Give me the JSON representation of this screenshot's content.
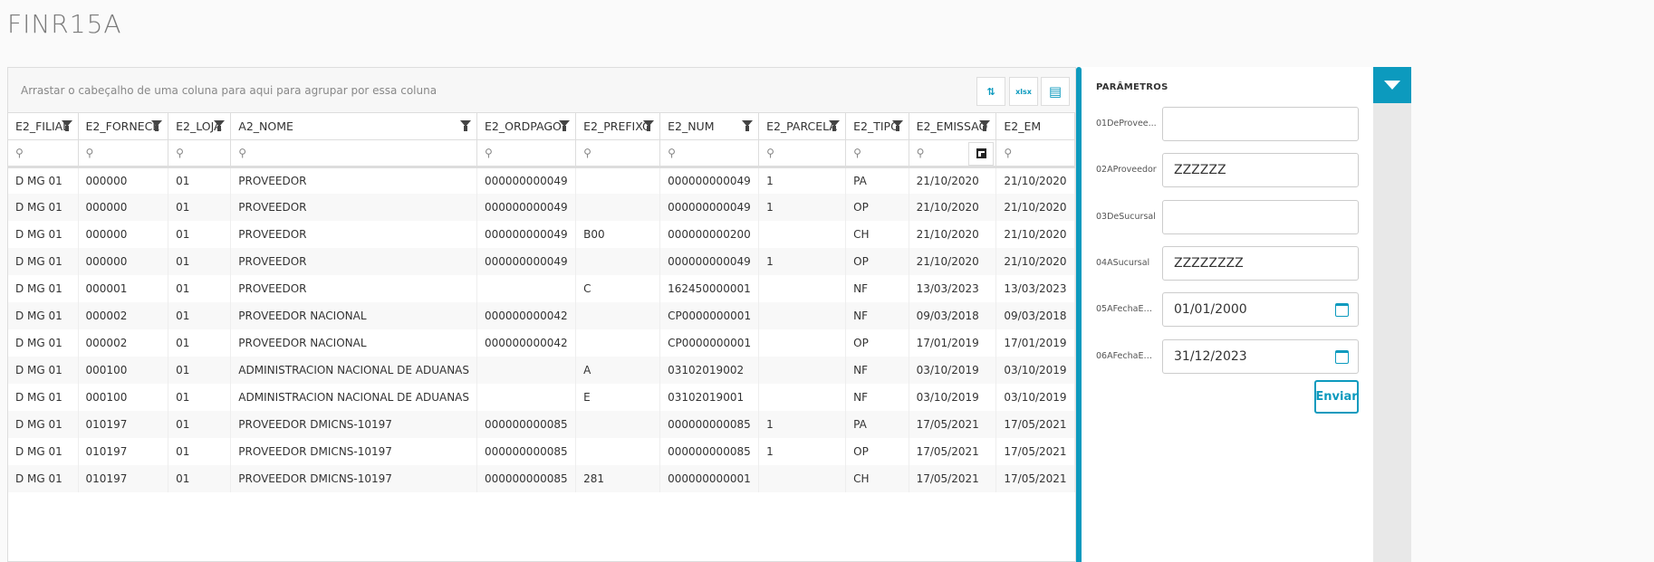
{
  "title": "FINR15A",
  "grid": {
    "group_hint": "Arrastar o cabeçalho de uma coluna para aqui para agrupar por essa coluna",
    "toolbar": [
      {
        "icon": "collapse-rows-icon",
        "glyph": "⇅"
      },
      {
        "icon": "export-xlsx-icon",
        "glyph": "xlsx"
      },
      {
        "icon": "column-chooser-icon",
        "glyph": "▤"
      }
    ],
    "columns": [
      "E2_FILIAL",
      "E2_FORNECE",
      "E2_LOJA",
      "A2_NOME",
      "E2_ORDPAGO",
      "E2_PREFIXO",
      "E2_NUM",
      "E2_PARCELA",
      "E2_TIPO",
      "E2_EMISSAO",
      "E2_EM"
    ],
    "rows": [
      [
        "D MG 01",
        "000000",
        "01",
        "PROVEEDOR",
        "000000000049",
        "",
        "000000000049",
        "1",
        "PA",
        "21/10/2020",
        "21/10/2020"
      ],
      [
        "D MG 01",
        "000000",
        "01",
        "PROVEEDOR",
        "000000000049",
        "",
        "000000000049",
        "1",
        "OP",
        "21/10/2020",
        "21/10/2020"
      ],
      [
        "D MG 01",
        "000000",
        "01",
        "PROVEEDOR",
        "000000000049",
        "B00",
        "000000000200",
        "",
        "CH",
        "21/10/2020",
        "21/10/2020"
      ],
      [
        "D MG 01",
        "000000",
        "01",
        "PROVEEDOR",
        "000000000049",
        "",
        "000000000049",
        "1",
        "OP",
        "21/10/2020",
        "21/10/2020"
      ],
      [
        "D MG 01",
        "000001",
        "01",
        "PROVEEDOR",
        "",
        "C",
        "162450000001",
        "",
        "NF",
        "13/03/2023",
        "13/03/2023"
      ],
      [
        "D MG 01",
        "000002",
        "01",
        "PROVEEDOR NACIONAL",
        "000000000042",
        "",
        "CP0000000001",
        "",
        "NF",
        "09/03/2018",
        "09/03/2018"
      ],
      [
        "D MG 01",
        "000002",
        "01",
        "PROVEEDOR NACIONAL",
        "000000000042",
        "",
        "CP0000000001",
        "",
        "OP",
        "17/01/2019",
        "17/01/2019"
      ],
      [
        "D MG 01",
        "000100",
        "01",
        "ADMINISTRACION NACIONAL DE ADUANAS",
        "",
        "A",
        "03102019002",
        "",
        "NF",
        "03/10/2019",
        "03/10/2019"
      ],
      [
        "D MG 01",
        "000100",
        "01",
        "ADMINISTRACION NACIONAL DE ADUANAS",
        "",
        "E",
        "03102019001",
        "",
        "NF",
        "03/10/2019",
        "03/10/2019"
      ],
      [
        "D MG 01",
        "010197",
        "01",
        "PROVEEDOR DMICNS-10197",
        "000000000085",
        "",
        "000000000085",
        "1",
        "PA",
        "17/05/2021",
        "17/05/2021"
      ],
      [
        "D MG 01",
        "010197",
        "01",
        "PROVEEDOR DMICNS-10197",
        "000000000085",
        "",
        "000000000085",
        "1",
        "OP",
        "17/05/2021",
        "17/05/2021"
      ],
      [
        "D MG 01",
        "010197",
        "01",
        "PROVEEDOR DMICNS-10197",
        "000000000085",
        "281",
        "000000000001",
        "",
        "CH",
        "17/05/2021",
        "17/05/2021"
      ]
    ]
  },
  "params": {
    "heading": "PARÂMETROS",
    "fields": [
      {
        "label": "01DeProvee...",
        "value": "",
        "type": "text"
      },
      {
        "label": "02AProveedor",
        "value": "ZZZZZZ",
        "type": "text"
      },
      {
        "label": "03DeSucursal",
        "value": "",
        "type": "text"
      },
      {
        "label": "04ASucursal",
        "value": "ZZZZZZZZ",
        "type": "text"
      },
      {
        "label": "05AFechaEm...",
        "value": "01/01/2000",
        "type": "date"
      },
      {
        "label": "06AFechaEm...",
        "value": "31/12/2023",
        "type": "date"
      }
    ],
    "submit_label": "Enviar"
  },
  "colors": {
    "accent": "#0c9abe"
  }
}
